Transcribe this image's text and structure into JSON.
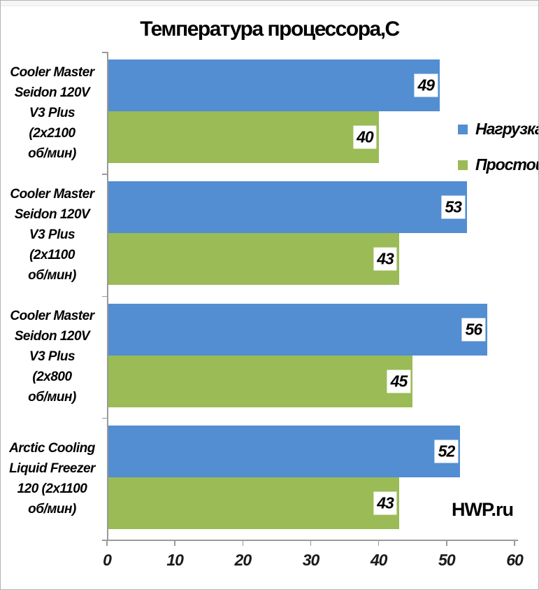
{
  "chart_data": {
    "type": "bar",
    "orientation": "horizontal",
    "title": "Температура процессора,C",
    "categories": [
      "Cooler Master Seidon 120V V3 Plus (2x2100 об/мин)",
      "Cooler Master Seidon 120V V3 Plus (2x1100 об/мин)",
      "Cooler Master Seidon 120V V3 Plus (2x800 об/мин)",
      "Arctic Cooling Liquid Freezer 120 (2x1100 об/мин)"
    ],
    "category_lines": [
      [
        "Cooler Master",
        "Seidon 120V",
        "V3 Plus",
        "(2x2100",
        "об/мин)"
      ],
      [
        "Cooler Master",
        "Seidon 120V",
        "V3 Plus",
        "(2x1100",
        "об/мин)"
      ],
      [
        "Cooler Master",
        "Seidon 120V",
        "V3 Plus",
        "(2x800",
        "об/мин)"
      ],
      [
        "Arctic Cooling",
        "Liquid Freezer",
        "120 (2x1100",
        "об/мин)"
      ]
    ],
    "series": [
      {
        "name": "Нагрузка",
        "color": "#528ed1",
        "values": [
          49,
          53,
          56,
          52
        ]
      },
      {
        "name": "Простой",
        "color": "#9abb56",
        "values": [
          40,
          43,
          45,
          43
        ]
      }
    ],
    "xlim": [
      0,
      60
    ],
    "x_ticks": [
      0,
      10,
      20,
      30,
      40,
      50,
      60
    ],
    "grid": false,
    "legend_position": "right",
    "axis_color": "#9a9a9a",
    "watermark": "HWP.ru"
  }
}
